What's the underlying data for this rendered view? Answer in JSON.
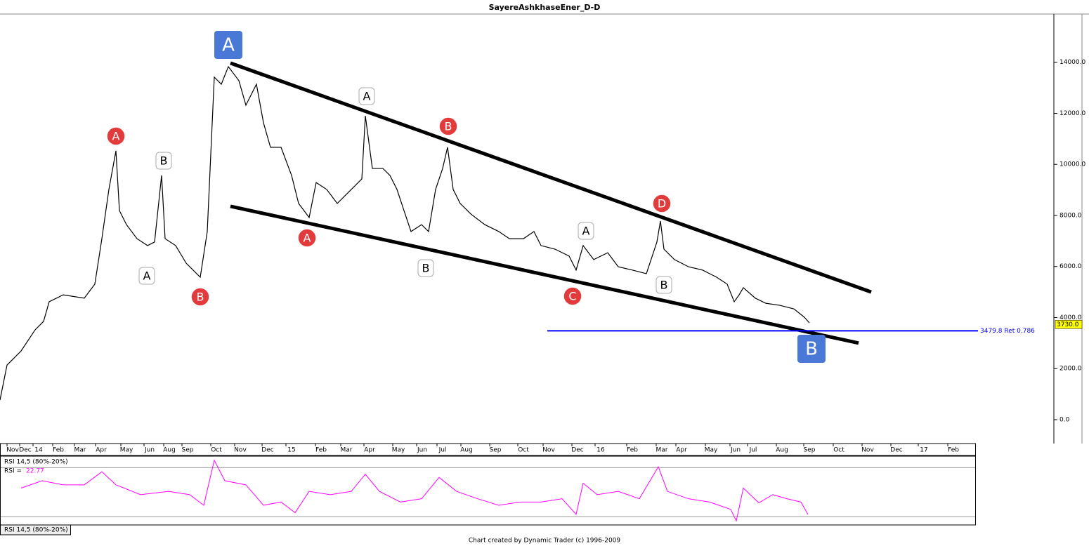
{
  "chart_data": [
    {
      "type": "line",
      "title": "SayereAshkhaseEner_D-D",
      "color": "#000000",
      "x": [
        0,
        10,
        30,
        50,
        62,
        70,
        90,
        120,
        135,
        145,
        155,
        165,
        170,
        180,
        195,
        210,
        220,
        230,
        235,
        250,
        265,
        285,
        295,
        305,
        315,
        325,
        340,
        350,
        365,
        375,
        385,
        400,
        415,
        425,
        440,
        450,
        465,
        480,
        500,
        515,
        520,
        530,
        545,
        555,
        565,
        575,
        585,
        600,
        610,
        620,
        630,
        637,
        645,
        655,
        670,
        690,
        710,
        725,
        745,
        760,
        770,
        790,
        810,
        820,
        830,
        845,
        865,
        880,
        900,
        920,
        935,
        940,
        945,
        960,
        980,
        1000,
        1020,
        1035,
        1045,
        1052,
        1058,
        1075,
        1090,
        1110,
        1130,
        1145,
        1152
      ],
      "values": [
        770,
        2140,
        2690,
        3520,
        3850,
        4620,
        4890,
        4760,
        5310,
        7090,
        9020,
        10530,
        8190,
        7640,
        7090,
        6820,
        6960,
        9570,
        7090,
        6820,
        6130,
        5580,
        7370,
        13420,
        13140,
        13830,
        13280,
        12320,
        13140,
        11630,
        10670,
        10670,
        9570,
        8470,
        7920,
        9290,
        9020,
        8470,
        9020,
        9430,
        11900,
        9840,
        9840,
        9570,
        9020,
        8190,
        7370,
        7640,
        7370,
        9020,
        9840,
        10670,
        9020,
        8470,
        8060,
        7640,
        7370,
        7090,
        7090,
        7370,
        6820,
        6680,
        6410,
        5860,
        6820,
        6270,
        6540,
        5990,
        5860,
        5720,
        6960,
        7780,
        6680,
        6270,
        5990,
        5860,
        5580,
        5310,
        4620,
        4890,
        5170,
        4760,
        4560,
        4480,
        4340,
        4010,
        3790
      ],
      "xlim": [
        0,
        1500
      ],
      "ylim": [
        -935,
        15890
      ],
      "yticks": [
        {
          "value": 0,
          "label": "0.0"
        },
        {
          "value": 2000,
          "label": "2000.0"
        },
        {
          "value": 4000,
          "label": "4000.0"
        },
        {
          "value": 6000,
          "label": "6000.0"
        },
        {
          "value": 8000,
          "label": "8000.0"
        },
        {
          "value": 10000,
          "label": "10000.0"
        },
        {
          "value": 12000,
          "label": "12000.0"
        },
        {
          "value": 14000,
          "label": "14000.0"
        }
      ],
      "xticks": [
        {
          "value": 18,
          "label": "Nov"
        },
        {
          "value": 36,
          "label": "Dec"
        },
        {
          "value": 55,
          "label": "14"
        },
        {
          "value": 83,
          "label": "Feb"
        },
        {
          "value": 114,
          "label": "Mar"
        },
        {
          "value": 144,
          "label": "Apr"
        },
        {
          "value": 180,
          "label": "May"
        },
        {
          "value": 213,
          "label": "Jun"
        },
        {
          "value": 241,
          "label": "Aug"
        },
        {
          "value": 267,
          "label": "Sep"
        },
        {
          "value": 308,
          "label": "Oct"
        },
        {
          "value": 342,
          "label": "Nov"
        },
        {
          "value": 381,
          "label": "Dec"
        },
        {
          "value": 415,
          "label": "15"
        },
        {
          "value": 457,
          "label": "Feb"
        },
        {
          "value": 493,
          "label": "Mar"
        },
        {
          "value": 526,
          "label": "Apr"
        },
        {
          "value": 567,
          "label": "May"
        },
        {
          "value": 601,
          "label": "Jun"
        },
        {
          "value": 630,
          "label": "Jul"
        },
        {
          "value": 664,
          "label": "Aug"
        },
        {
          "value": 705,
          "label": "Sep"
        },
        {
          "value": 745,
          "label": "Oct"
        },
        {
          "value": 781,
          "label": "Nov"
        },
        {
          "value": 822,
          "label": "Dec"
        },
        {
          "value": 855,
          "label": "16"
        },
        {
          "value": 900,
          "label": "Feb"
        },
        {
          "value": 942,
          "label": "Mar"
        },
        {
          "value": 970,
          "label": "Apr"
        },
        {
          "value": 1012,
          "label": "May"
        },
        {
          "value": 1047,
          "label": "Jun"
        },
        {
          "value": 1072,
          "label": "Jul"
        },
        {
          "value": 1113,
          "label": "Aug"
        },
        {
          "value": 1152,
          "label": "Sep"
        },
        {
          "value": 1194,
          "label": "Oct"
        },
        {
          "value": 1235,
          "label": "Nov"
        },
        {
          "value": 1276,
          "label": "Dec"
        },
        {
          "value": 1315,
          "label": "17"
        },
        {
          "value": 1357,
          "label": "Feb"
        }
      ],
      "last_price": {
        "value": 3730,
        "label": "3730.0"
      },
      "retracement": {
        "value": 3479.8,
        "label": "3479.8 Ret 0.786",
        "color": "#0000ff"
      },
      "trendlines": [
        {
          "x": [
            328,
            1240
          ],
          "values": [
            13970,
            5000
          ]
        },
        {
          "x": [
            328,
            1222
          ],
          "values": [
            8360,
            3000
          ]
        }
      ],
      "annotations": [
        {
          "text": "A",
          "style": "blue"
        },
        {
          "text": "B",
          "style": "blue"
        },
        {
          "text": "A",
          "style": "red"
        },
        {
          "text": "B",
          "style": "red"
        },
        {
          "text": "A",
          "style": "red"
        },
        {
          "text": "B",
          "style": "red"
        },
        {
          "text": "C",
          "style": "red"
        },
        {
          "text": "D",
          "style": "red"
        },
        {
          "text": "B",
          "style": "white"
        },
        {
          "text": "A",
          "style": "white"
        },
        {
          "text": "A",
          "style": "white"
        },
        {
          "text": "B",
          "style": "white"
        },
        {
          "text": "A",
          "style": "white"
        },
        {
          "text": "B",
          "style": "white"
        }
      ]
    },
    {
      "type": "line",
      "title": "RSI 14,5 (80%-20%)",
      "readout_label": "RSI =",
      "color": "#ff00ff",
      "x": [
        30,
        60,
        90,
        120,
        145,
        165,
        200,
        240,
        270,
        290,
        305,
        320,
        350,
        375,
        400,
        420,
        440,
        470,
        500,
        520,
        540,
        570,
        600,
        625,
        650,
        680,
        710,
        740,
        770,
        800,
        820,
        830,
        850,
        880,
        910,
        937,
        950,
        980,
        1010,
        1040,
        1048,
        1058,
        1080,
        1100,
        1120,
        1140,
        1150
      ],
      "values": [
        55,
        64,
        59,
        59,
        75,
        59,
        47,
        51,
        47,
        34,
        89,
        64,
        59,
        34,
        38,
        25,
        51,
        47,
        51,
        72,
        51,
        38,
        42,
        68,
        51,
        42,
        34,
        38,
        38,
        42,
        23,
        61,
        47,
        51,
        42,
        81,
        51,
        42,
        38,
        29,
        15,
        55,
        37,
        47,
        42,
        38,
        22.77
      ],
      "xlim": [
        0,
        1500
      ],
      "ylim": [
        10,
        94
      ],
      "levels": [
        80,
        20
      ]
    }
  ],
  "footer": "Chart created by Dynamic Trader  (c) 1996-2009"
}
